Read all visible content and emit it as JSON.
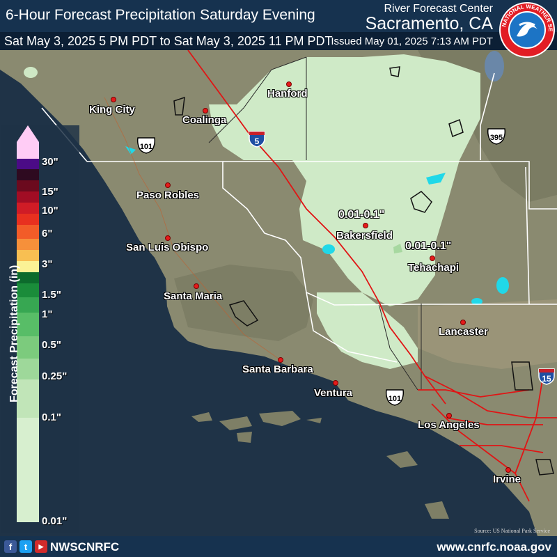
{
  "header": {
    "title": "6-Hour Forecast Precipitation Saturday Evening",
    "org": "River Forecast Center",
    "office": "Sacramento, CA",
    "period": "Sat May 3, 2025 5 PM PDT to Sat May 3, 2025 11 PM PDT",
    "issued": "Issued May 01, 2025 7:13 AM PDT",
    "logo_text": "NATIONAL WEATHER SERVICE"
  },
  "legend": {
    "title": "Forecast Precipitation (in)",
    "labels": [
      "30\"",
      "15\"",
      "10\"",
      "6\"",
      "3\"",
      "1.5\"",
      "1\"",
      "0.5\"",
      "0.25\"",
      "0.1\"",
      "0.01\""
    ],
    "colors": {
      "c30": "#ffccf5",
      "c20": "#4b0b86",
      "c15": "#2e0a20",
      "c12": "#6b0a1e",
      "c10": "#a10d24",
      "c8": "#d01c26",
      "c6": "#e8301f",
      "c4": "#f25c28",
      "c3": "#f6903a",
      "c2": "#f8bf52",
      "c1_5": "#fbf295",
      "c1_25": "#0c6b2c",
      "c1": "#1a8c3a",
      "c0_75": "#37a752",
      "c0_5": "#58bd67",
      "c0_35": "#7ccb7d",
      "c0_25": "#9ed89a",
      "c0_1": "#c1e5b8",
      "c0_01": "#d7efcf"
    }
  },
  "map": {
    "colors": {
      "ocean": "#1f3347",
      "land": "#8a8a70",
      "precip_area": "#cfeac7",
      "roads": "#e01515",
      "borders": "#ffffff",
      "lakes": "#20d8e8"
    },
    "cities": [
      {
        "name": "King City"
      },
      {
        "name": "Coalinga"
      },
      {
        "name": "Hanford"
      },
      {
        "name": "Paso Robles"
      },
      {
        "name": "San Luis Obispo"
      },
      {
        "name": "Santa Maria"
      },
      {
        "name": "Bakersfield"
      },
      {
        "name": "Tehachapi"
      },
      {
        "name": "Lancaster"
      },
      {
        "name": "Santa Barbara"
      },
      {
        "name": "Ventura"
      },
      {
        "name": "Los Angeles"
      },
      {
        "name": "Irvine"
      }
    ],
    "amount_labels": [
      "0.01-0.1\"",
      "0.01-0.1\""
    ],
    "highway_shields": {
      "i5_north": "5",
      "us101_north": "101",
      "us395": "395",
      "us101_south": "101",
      "i15": "15"
    }
  },
  "footer": {
    "handle": "NWSCNRFC",
    "website": "www.cnrfc.noaa.gov",
    "source": "Source: US National Park Service",
    "social_icons": [
      "facebook-icon",
      "twitter-icon",
      "youtube-icon"
    ]
  }
}
